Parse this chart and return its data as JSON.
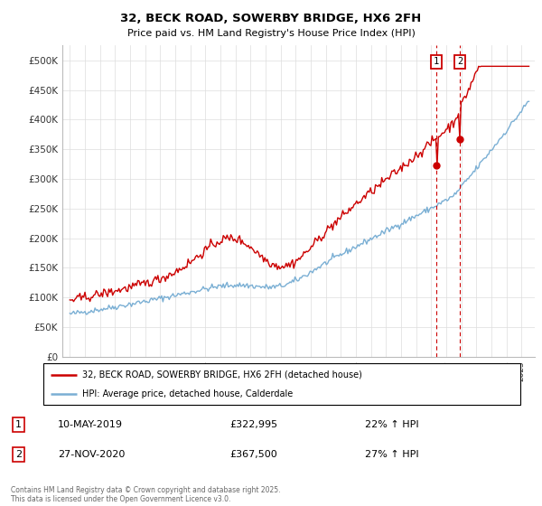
{
  "title_line1": "32, BECK ROAD, SOWERBY BRIDGE, HX6 2FH",
  "title_line2": "Price paid vs. HM Land Registry's House Price Index (HPI)",
  "ylim": [
    0,
    525000
  ],
  "yticks": [
    0,
    50000,
    100000,
    150000,
    200000,
    250000,
    300000,
    350000,
    400000,
    450000,
    500000
  ],
  "ytick_labels": [
    "£0",
    "£50K",
    "£100K",
    "£150K",
    "£200K",
    "£250K",
    "£300K",
    "£350K",
    "£400K",
    "£450K",
    "£500K"
  ],
  "legend_label_red": "32, BECK ROAD, SOWERBY BRIDGE, HX6 2FH (detached house)",
  "legend_label_blue": "HPI: Average price, detached house, Calderdale",
  "annotation1_date": "10-MAY-2019",
  "annotation1_price": "£322,995",
  "annotation1_pct": "22% ↑ HPI",
  "annotation2_date": "27-NOV-2020",
  "annotation2_price": "£367,500",
  "annotation2_pct": "27% ↑ HPI",
  "red_color": "#cc0000",
  "blue_color": "#7aafd4",
  "grid_color": "#dddddd",
  "footer": "Contains HM Land Registry data © Crown copyright and database right 2025.\nThis data is licensed under the Open Government Licence v3.0.",
  "sale1_year": 2019.36,
  "sale1_price": 322995,
  "sale2_year": 2020.9,
  "sale2_price": 367500
}
